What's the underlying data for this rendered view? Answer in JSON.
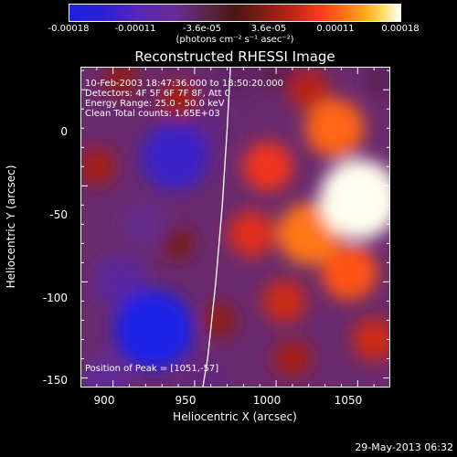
{
  "colorbar": {
    "ticks": [
      "-0.00018",
      "-0.00011",
      "-3.6e-05",
      "3.6e-05",
      "0.00011",
      "0.00018"
    ],
    "unit": "(photons cm⁻² s⁻¹ asec⁻²)"
  },
  "title": "Reconstructed RHESSI Image",
  "info": {
    "time": "10-Feb-2003 18:47:36.000 to 18:50:20.000",
    "detectors": "Detectors: 4F 5F 6F 7F 8F, Att 0",
    "energy": "Energy Range: 25.0 - 50.0 keV",
    "clean": "Clean    Total counts: 1.65E+03",
    "peak": "Position of Peak = [1051,-57]"
  },
  "footer": {
    "date": "29-May-2013 06:32"
  },
  "chart_data": {
    "type": "heatmap",
    "title": "Reconstructed RHESSI Image",
    "xlabel": "Heliocentric X (arcsec)",
    "ylabel": "Heliocentric Y (arcsec)",
    "xlim": [
      880,
      1070
    ],
    "ylim": [
      -155,
      12
    ],
    "xticks": [
      900,
      950,
      1000,
      1050
    ],
    "yticks": [
      0,
      -50,
      -100,
      -150
    ],
    "colorbar_range": [
      -0.00018,
      0.00018
    ],
    "peak_position": [
      1051,
      -57
    ],
    "limb": [
      [
        972,
        12
      ],
      [
        970,
        -20
      ],
      [
        967,
        -60
      ],
      [
        963,
        -100
      ],
      [
        958,
        -140
      ],
      [
        955,
        -155
      ]
    ],
    "blobs": [
      {
        "x": 1051,
        "y": -57,
        "value": 0.00018
      },
      {
        "x": 1036,
        "y": -20,
        "value": 0.00011
      },
      {
        "x": 1020,
        "y": -75,
        "value": 0.00012
      },
      {
        "x": 995,
        "y": -40,
        "value": 8e-05
      },
      {
        "x": 1045,
        "y": -95,
        "value": 0.0001
      },
      {
        "x": 1060,
        "y": -130,
        "value": 6e-05
      },
      {
        "x": 1005,
        "y": -110,
        "value": 6e-05
      },
      {
        "x": 985,
        "y": -75,
        "value": 7e-05
      },
      {
        "x": 1020,
        "y": 0,
        "value": 5e-05
      },
      {
        "x": 1010,
        "y": -140,
        "value": 4e-05
      },
      {
        "x": 940,
        "y": -5,
        "value": 4e-05
      },
      {
        "x": 905,
        "y": 5,
        "value": 3e-05
      },
      {
        "x": 890,
        "y": -40,
        "value": 4e-05
      },
      {
        "x": 965,
        "y": -120,
        "value": 3e-05
      },
      {
        "x": 940,
        "y": -80,
        "value": 2e-05
      },
      {
        "x": 938,
        "y": -35,
        "value": -0.00014
      },
      {
        "x": 925,
        "y": -125,
        "value": -0.00018
      },
      {
        "x": 905,
        "y": -100,
        "value": -9e-05
      },
      {
        "x": 960,
        "y": -20,
        "value": -6e-05
      },
      {
        "x": 920,
        "y": -70,
        "value": -7e-05
      },
      {
        "x": 895,
        "y": -150,
        "value": -8e-05
      },
      {
        "x": 955,
        "y": -150,
        "value": -6e-05
      },
      {
        "x": 975,
        "y": 5,
        "value": -4e-05
      },
      {
        "x": 1065,
        "y": 5,
        "value": -3e-05
      },
      {
        "x": 1000,
        "y": 8,
        "value": -2e-05
      }
    ]
  }
}
